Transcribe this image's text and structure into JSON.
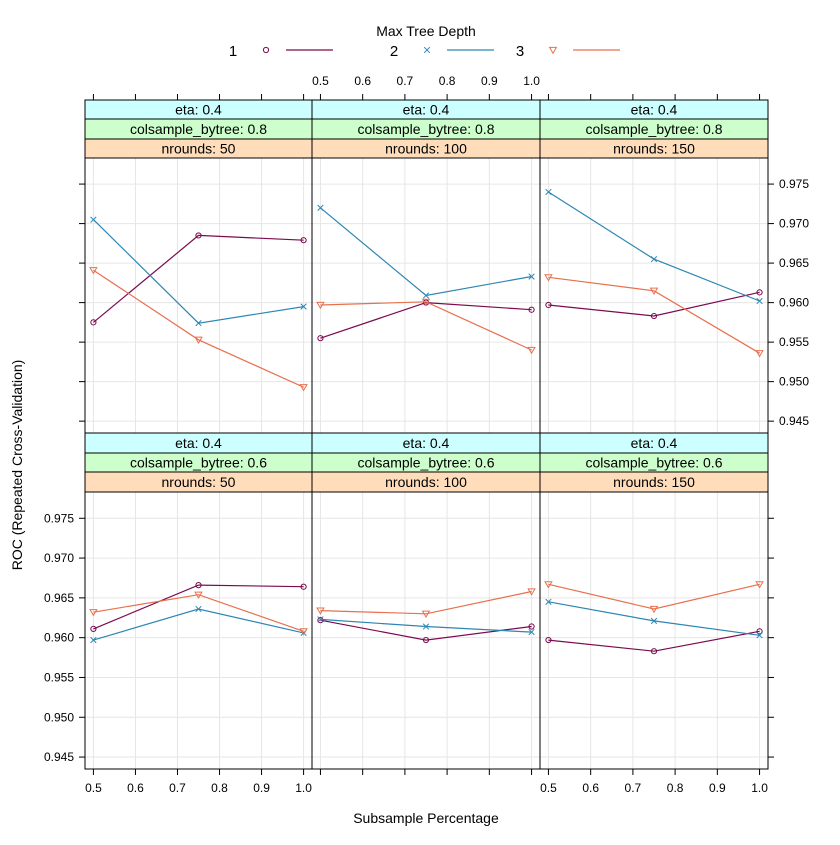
{
  "chart_data": {
    "type": "line",
    "layout": "trellis 3 columns x 2 rows",
    "legend": {
      "title": "Max Tree Depth",
      "placement": "top",
      "entries": [
        {
          "label": "1",
          "color": "#7B0A4E",
          "marker": "circle"
        },
        {
          "label": "2",
          "color": "#2C86B3",
          "marker": "cross"
        },
        {
          "label": "3",
          "color": "#E8704E",
          "marker": "triangle-down"
        }
      ]
    },
    "xlabel": "Subsample Percentage",
    "ylabel": "ROC (Repeated Cross-Validation)",
    "x_ticks": [
      "0.5",
      "0.6",
      "0.7",
      "0.8",
      "0.9",
      "1.0"
    ],
    "y_ticks": [
      "0.945",
      "0.950",
      "0.955",
      "0.960",
      "0.965",
      "0.970",
      "0.975"
    ],
    "xlim": [
      0.48,
      1.02
    ],
    "ylim": [
      0.9435,
      0.9783
    ],
    "grid": true,
    "x": [
      0.5,
      0.75,
      1.0
    ],
    "panels": [
      {
        "strips": [
          "eta: 0.4",
          "colsample_bytree: 0.8",
          "nrounds:  50"
        ],
        "series": [
          {
            "name": "1",
            "values": [
              0.9575,
              0.9685,
              0.9679
            ]
          },
          {
            "name": "2",
            "values": [
              0.9705,
              0.9574,
              0.9595
            ]
          },
          {
            "name": "3",
            "values": [
              0.9641,
              0.9553,
              0.9493
            ]
          }
        ]
      },
      {
        "strips": [
          "eta: 0.4",
          "colsample_bytree: 0.8",
          "nrounds: 100"
        ],
        "series": [
          {
            "name": "1",
            "values": [
              0.9555,
              0.96,
              0.9591
            ]
          },
          {
            "name": "2",
            "values": [
              0.972,
              0.9609,
              0.9633
            ]
          },
          {
            "name": "3",
            "values": [
              0.9597,
              0.9601,
              0.954
            ]
          }
        ]
      },
      {
        "strips": [
          "eta: 0.4",
          "colsample_bytree: 0.8",
          "nrounds: 150"
        ],
        "series": [
          {
            "name": "1",
            "values": [
              0.9597,
              0.9583,
              0.9613
            ]
          },
          {
            "name": "2",
            "values": [
              0.974,
              0.9655,
              0.9602
            ]
          },
          {
            "name": "3",
            "values": [
              0.9632,
              0.9615,
              0.9536
            ]
          }
        ]
      },
      {
        "strips": [
          "eta: 0.4",
          "colsample_bytree: 0.6",
          "nrounds:  50"
        ],
        "series": [
          {
            "name": "1",
            "values": [
              0.9611,
              0.9666,
              0.9664
            ]
          },
          {
            "name": "2",
            "values": [
              0.9597,
              0.9636,
              0.9606
            ]
          },
          {
            "name": "3",
            "values": [
              0.9632,
              0.9654,
              0.9608
            ]
          }
        ]
      },
      {
        "strips": [
          "eta: 0.4",
          "colsample_bytree: 0.6",
          "nrounds: 100"
        ],
        "series": [
          {
            "name": "1",
            "values": [
              0.9622,
              0.9597,
              0.9614
            ]
          },
          {
            "name": "2",
            "values": [
              0.9623,
              0.9614,
              0.9607
            ]
          },
          {
            "name": "3",
            "values": [
              0.9634,
              0.963,
              0.9658
            ]
          }
        ]
      },
      {
        "strips": [
          "eta: 0.4",
          "colsample_bytree: 0.6",
          "nrounds: 150"
        ],
        "series": [
          {
            "name": "1",
            "values": [
              0.9597,
              0.9583,
              0.9608
            ]
          },
          {
            "name": "2",
            "values": [
              0.9645,
              0.9621,
              0.9603
            ]
          },
          {
            "name": "3",
            "values": [
              0.9667,
              0.9636,
              0.9667
            ]
          }
        ]
      }
    ]
  }
}
